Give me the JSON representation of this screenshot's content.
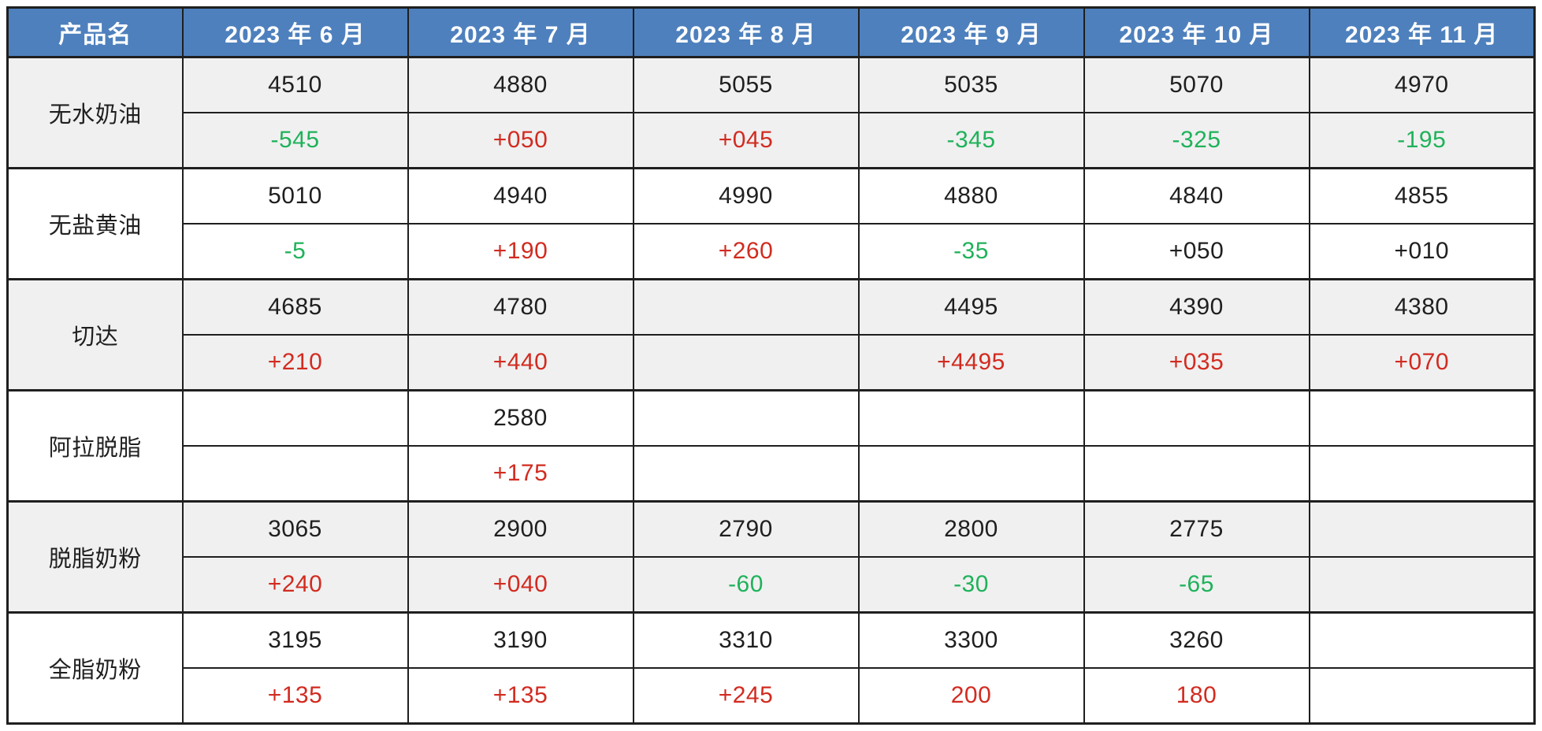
{
  "colors": {
    "header_bg": "#4e80bd",
    "header_text": "#ffffff",
    "border": "#1f1f1f",
    "row_alt_bg": "#f0f0f0",
    "row_bg": "#ffffff",
    "red": "#d22b20",
    "green": "#1fb25a",
    "black": "#1f1f1f"
  },
  "chart_data": {
    "type": "table",
    "columns": [
      "产品名",
      "2023 年 6 月",
      "2023 年 7 月",
      "2023 年 8 月",
      "2023 年 9 月",
      "2023 年 10 月",
      "2023 年 11 月"
    ],
    "products": [
      {
        "name": "无水奶油",
        "prices": [
          "4510",
          "4880",
          "5055",
          "5035",
          "5070",
          "4970"
        ],
        "changes": [
          {
            "t": "-545",
            "c": "green"
          },
          {
            "t": "+050",
            "c": "red"
          },
          {
            "t": "+045",
            "c": "red"
          },
          {
            "t": "-345",
            "c": "green"
          },
          {
            "t": "-325",
            "c": "green"
          },
          {
            "t": "-195",
            "c": "green"
          }
        ]
      },
      {
        "name": "无盐黄油",
        "prices": [
          "5010",
          "4940",
          "4990",
          "4880",
          "4840",
          "4855"
        ],
        "changes": [
          {
            "t": "-5",
            "c": "green"
          },
          {
            "t": "+190",
            "c": "red"
          },
          {
            "t": "+260",
            "c": "red"
          },
          {
            "t": "-35",
            "c": "green"
          },
          {
            "t": "+050",
            "c": "black"
          },
          {
            "t": "+010",
            "c": "black"
          }
        ]
      },
      {
        "name": "切达",
        "prices": [
          "4685",
          "4780",
          "",
          "4495",
          "4390",
          "4380"
        ],
        "changes": [
          {
            "t": "+210",
            "c": "red"
          },
          {
            "t": "+440",
            "c": "red"
          },
          {
            "t": "",
            "c": ""
          },
          {
            "t": "+4495",
            "c": "red"
          },
          {
            "t": "+035",
            "c": "red"
          },
          {
            "t": "+070",
            "c": "red"
          }
        ]
      },
      {
        "name": "阿拉脱脂",
        "prices": [
          "",
          "2580",
          "",
          "",
          "",
          ""
        ],
        "changes": [
          {
            "t": "",
            "c": ""
          },
          {
            "t": "+175",
            "c": "red"
          },
          {
            "t": "",
            "c": ""
          },
          {
            "t": "",
            "c": ""
          },
          {
            "t": "",
            "c": ""
          },
          {
            "t": "",
            "c": ""
          }
        ]
      },
      {
        "name": "脱脂奶粉",
        "prices": [
          "3065",
          "2900",
          "2790",
          "2800",
          "2775",
          ""
        ],
        "changes": [
          {
            "t": "+240",
            "c": "red"
          },
          {
            "t": "+040",
            "c": "red"
          },
          {
            "t": "-60",
            "c": "green"
          },
          {
            "t": "-30",
            "c": "green"
          },
          {
            "t": "-65",
            "c": "green"
          },
          {
            "t": "",
            "c": ""
          }
        ]
      },
      {
        "name": "全脂奶粉",
        "prices": [
          "3195",
          "3190",
          "3310",
          "3300",
          "3260",
          ""
        ],
        "changes": [
          {
            "t": "+135",
            "c": "red"
          },
          {
            "t": "+135",
            "c": "red"
          },
          {
            "t": "+245",
            "c": "red"
          },
          {
            "t": "200",
            "c": "red"
          },
          {
            "t": "180",
            "c": "red"
          },
          {
            "t": "",
            "c": ""
          }
        ]
      }
    ]
  }
}
